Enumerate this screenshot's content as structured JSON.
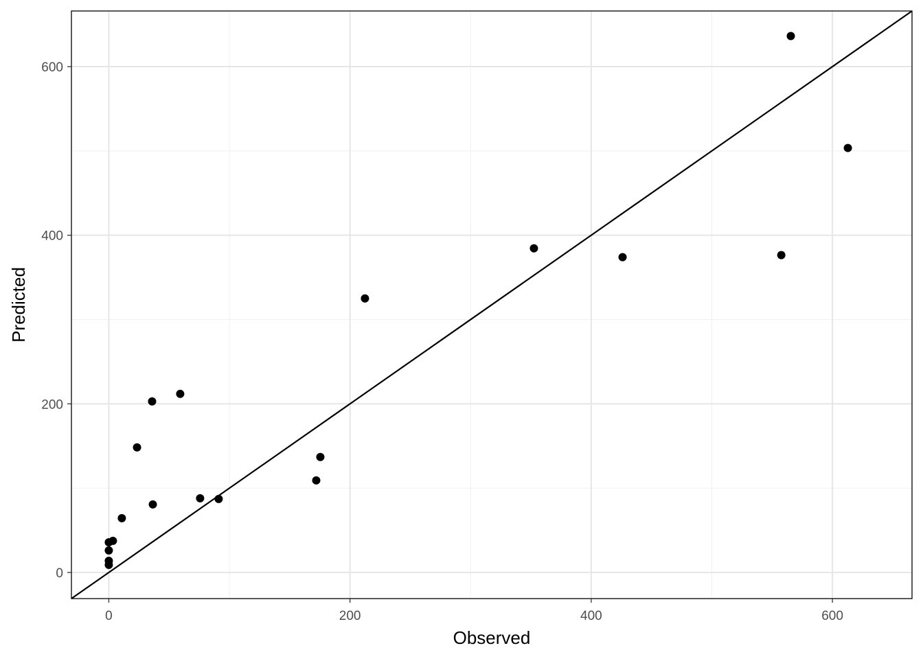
{
  "chart_data": {
    "type": "scatter",
    "title": "",
    "xlabel": "Observed",
    "ylabel": "Predicted",
    "xlim": [
      -31,
      666
    ],
    "ylim": [
      -31,
      666
    ],
    "x_ticks": [
      0,
      200,
      400,
      600
    ],
    "y_ticks": [
      0,
      200,
      400,
      600
    ],
    "x_tick_labels": [
      "0",
      "200",
      "400",
      "600"
    ],
    "y_tick_labels": [
      "0",
      "200",
      "400",
      "600"
    ],
    "grid": true,
    "theme": "black-and-white",
    "reference_line": {
      "type": "identity",
      "slope": 1,
      "intercept": 0,
      "color": "#000000"
    },
    "point_color": "#000000",
    "points": [
      {
        "x": 565.5,
        "y": 636.3
      },
      {
        "x": 612.8,
        "y": 503.5
      },
      {
        "x": 352.5,
        "y": 384.5
      },
      {
        "x": 426.0,
        "y": 374.0
      },
      {
        "x": 557.6,
        "y": 376.4
      },
      {
        "x": 212.4,
        "y": 325.0
      },
      {
        "x": 59.2,
        "y": 211.8
      },
      {
        "x": 35.9,
        "y": 202.9
      },
      {
        "x": 23.4,
        "y": 148.3
      },
      {
        "x": 175.4,
        "y": 136.9
      },
      {
        "x": 172.0,
        "y": 109.2
      },
      {
        "x": 75.7,
        "y": 88.0
      },
      {
        "x": 91.1,
        "y": 87.2
      },
      {
        "x": 36.5,
        "y": 80.7
      },
      {
        "x": 10.8,
        "y": 64.4
      },
      {
        "x": 3.4,
        "y": 37.5
      },
      {
        "x": 0.0,
        "y": 35.8
      },
      {
        "x": 0.0,
        "y": 26.1
      },
      {
        "x": 0.0,
        "y": 13.8
      },
      {
        "x": 0.0,
        "y": 9.0
      }
    ]
  }
}
